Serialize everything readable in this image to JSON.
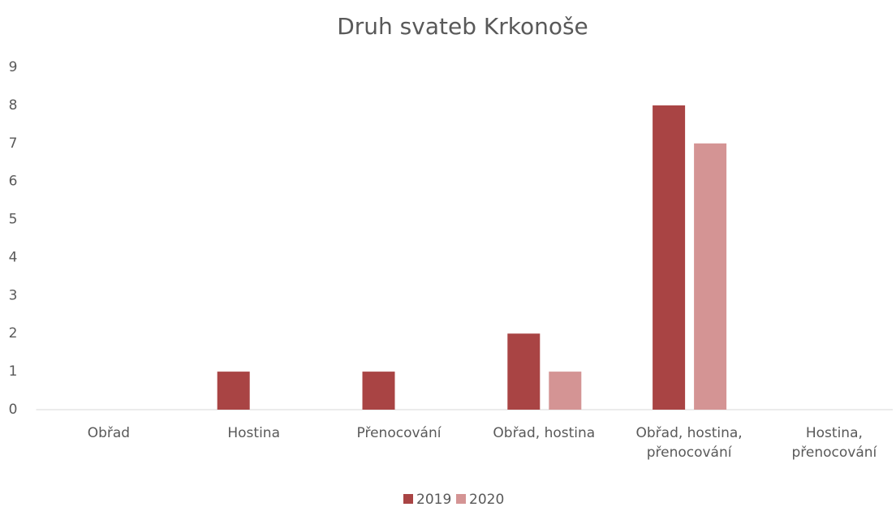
{
  "chart_data": {
    "type": "bar",
    "title": "Druh svateb Krkonoše",
    "categories": [
      "Obřad",
      "Hostina",
      "Přenocování",
      "Obřad, hostina",
      "Obřad, hostina, přenocování",
      "Hostina, přenocování"
    ],
    "series": [
      {
        "name": "2019",
        "color": "#a94444",
        "values": [
          0,
          1,
          1,
          2,
          8,
          0
        ]
      },
      {
        "name": "2020",
        "color": "#d49494",
        "values": [
          0,
          0,
          0,
          1,
          7,
          0
        ]
      }
    ],
    "ylim": [
      0,
      9
    ],
    "yticks": [
      0,
      1,
      2,
      3,
      4,
      5,
      6,
      7,
      8,
      9
    ],
    "grid": false,
    "legend": "bottom"
  }
}
